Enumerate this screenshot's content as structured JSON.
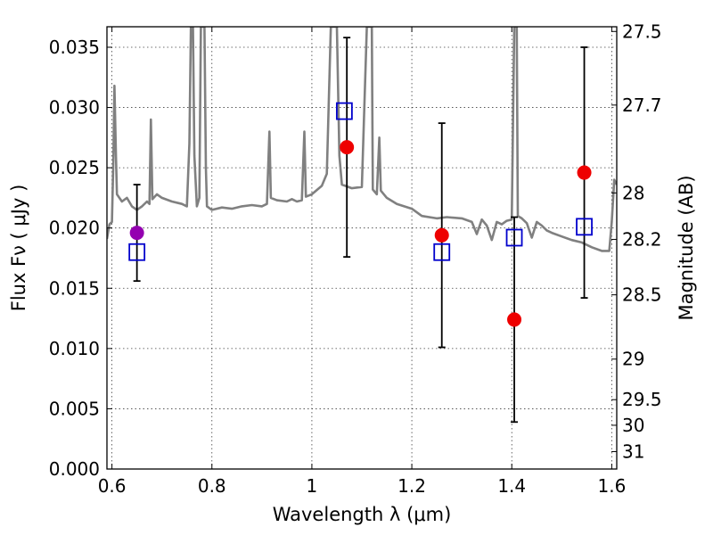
{
  "chart_data": {
    "type": "scatter",
    "xlabel": "Wavelength  λ (μm)",
    "ylabel": "Flux  Fν  ( μJy )",
    "y2label": "Magnitude (AB)",
    "xlim": [
      0.59,
      1.61
    ],
    "ylim": [
      0.0,
      0.0367
    ],
    "grid": true,
    "x_ticks": [
      {
        "value": 0.6,
        "label": "0.6"
      },
      {
        "value": 0.8,
        "label": "0.8"
      },
      {
        "value": 1.0,
        "label": "1"
      },
      {
        "value": 1.2,
        "label": "1.2"
      },
      {
        "value": 1.4,
        "label": "1.4"
      },
      {
        "value": 1.6,
        "label": "1.6"
      }
    ],
    "y_ticks": [
      {
        "value": 0.0,
        "label": "0.000"
      },
      {
        "value": 0.005,
        "label": "0.005"
      },
      {
        "value": 0.01,
        "label": "0.010"
      },
      {
        "value": 0.015,
        "label": "0.015"
      },
      {
        "value": 0.02,
        "label": "0.020"
      },
      {
        "value": 0.025,
        "label": "0.025"
      },
      {
        "value": 0.03,
        "label": "0.030"
      },
      {
        "value": 0.035,
        "label": "0.035"
      }
    ],
    "y2_ticks": [
      {
        "mag": 27.5,
        "label": "27.5"
      },
      {
        "mag": 27.7,
        "label": "27.7"
      },
      {
        "mag": 28.0,
        "label": "28"
      },
      {
        "mag": 28.2,
        "label": "28.2"
      },
      {
        "mag": 28.5,
        "label": "28.5"
      },
      {
        "mag": 29.0,
        "label": "29"
      },
      {
        "mag": 29.5,
        "label": "29.5"
      },
      {
        "mag": 30.0,
        "label": "30"
      },
      {
        "mag": 31.0,
        "label": "31"
      }
    ],
    "observed": [
      {
        "x": 0.65,
        "y": 0.0196,
        "err_low": 0.0156,
        "err_high": 0.0236,
        "color": "#9400b0"
      },
      {
        "x": 1.07,
        "y": 0.0267,
        "err_low": 0.0176,
        "err_high": 0.0358,
        "color": "#ee0000"
      },
      {
        "x": 1.26,
        "y": 0.0194,
        "err_low": 0.0101,
        "err_high": 0.0287,
        "color": "#ee0000"
      },
      {
        "x": 1.405,
        "y": 0.0124,
        "err_low": 0.0039,
        "err_high": 0.0209,
        "color": "#ee0000"
      },
      {
        "x": 1.545,
        "y": 0.0246,
        "err_low": 0.0142,
        "err_high": 0.035,
        "color": "#ee0000"
      }
    ],
    "model_points": [
      {
        "x": 0.65,
        "y": 0.018
      },
      {
        "x": 1.065,
        "y": 0.0297
      },
      {
        "x": 1.26,
        "y": 0.018
      },
      {
        "x": 1.405,
        "y": 0.0192
      },
      {
        "x": 1.545,
        "y": 0.0201
      }
    ],
    "model_spectrum": [
      [
        0.59,
        0.0191
      ],
      [
        0.595,
        0.0203
      ],
      [
        0.6,
        0.0205
      ],
      [
        0.603,
        0.026
      ],
      [
        0.605,
        0.0318
      ],
      [
        0.608,
        0.026
      ],
      [
        0.61,
        0.0228
      ],
      [
        0.62,
        0.0222
      ],
      [
        0.63,
        0.0225
      ],
      [
        0.64,
        0.0218
      ],
      [
        0.65,
        0.0215
      ],
      [
        0.66,
        0.0218
      ],
      [
        0.67,
        0.0222
      ],
      [
        0.675,
        0.022
      ],
      [
        0.678,
        0.029
      ],
      [
        0.681,
        0.0224
      ],
      [
        0.69,
        0.0228
      ],
      [
        0.7,
        0.0225
      ],
      [
        0.72,
        0.0222
      ],
      [
        0.74,
        0.022
      ],
      [
        0.75,
        0.0218
      ],
      [
        0.755,
        0.027
      ],
      [
        0.758,
        0.0367
      ],
      [
        0.762,
        0.0367
      ],
      [
        0.765,
        0.026
      ],
      [
        0.77,
        0.0218
      ],
      [
        0.775,
        0.0225
      ],
      [
        0.778,
        0.0367
      ],
      [
        0.785,
        0.0367
      ],
      [
        0.788,
        0.025
      ],
      [
        0.79,
        0.0218
      ],
      [
        0.8,
        0.0215
      ],
      [
        0.82,
        0.0217
      ],
      [
        0.84,
        0.0216
      ],
      [
        0.86,
        0.0218
      ],
      [
        0.88,
        0.0219
      ],
      [
        0.9,
        0.0218
      ],
      [
        0.91,
        0.022
      ],
      [
        0.915,
        0.028
      ],
      [
        0.918,
        0.0225
      ],
      [
        0.93,
        0.0223
      ],
      [
        0.95,
        0.0222
      ],
      [
        0.96,
        0.0224
      ],
      [
        0.97,
        0.0222
      ],
      [
        0.98,
        0.0223
      ],
      [
        0.985,
        0.028
      ],
      [
        0.988,
        0.0226
      ],
      [
        1.0,
        0.0228
      ],
      [
        1.02,
        0.0235
      ],
      [
        1.03,
        0.0245
      ],
      [
        1.038,
        0.0367
      ],
      [
        1.05,
        0.0367
      ],
      [
        1.055,
        0.026
      ],
      [
        1.06,
        0.0236
      ],
      [
        1.08,
        0.0233
      ],
      [
        1.1,
        0.0234
      ],
      [
        1.11,
        0.0367
      ],
      [
        1.12,
        0.0367
      ],
      [
        1.122,
        0.0232
      ],
      [
        1.13,
        0.0228
      ],
      [
        1.135,
        0.0275
      ],
      [
        1.138,
        0.0231
      ],
      [
        1.15,
        0.0225
      ],
      [
        1.17,
        0.022
      ],
      [
        1.2,
        0.0216
      ],
      [
        1.22,
        0.021
      ],
      [
        1.25,
        0.0208
      ],
      [
        1.27,
        0.0209
      ],
      [
        1.3,
        0.0208
      ],
      [
        1.32,
        0.0205
      ],
      [
        1.33,
        0.0195
      ],
      [
        1.34,
        0.0207
      ],
      [
        1.35,
        0.0202
      ],
      [
        1.36,
        0.019
      ],
      [
        1.37,
        0.0205
      ],
      [
        1.38,
        0.0203
      ],
      [
        1.39,
        0.0206
      ],
      [
        1.4,
        0.0207
      ],
      [
        1.405,
        0.0367
      ],
      [
        1.41,
        0.0367
      ],
      [
        1.412,
        0.021
      ],
      [
        1.42,
        0.0208
      ],
      [
        1.43,
        0.0204
      ],
      [
        1.44,
        0.0192
      ],
      [
        1.45,
        0.0205
      ],
      [
        1.46,
        0.0202
      ],
      [
        1.47,
        0.0198
      ],
      [
        1.48,
        0.0196
      ],
      [
        1.5,
        0.0193
      ],
      [
        1.52,
        0.019
      ],
      [
        1.54,
        0.0188
      ],
      [
        1.56,
        0.0184
      ],
      [
        1.58,
        0.0181
      ],
      [
        1.595,
        0.0181
      ],
      [
        1.6,
        0.0205
      ],
      [
        1.605,
        0.024
      ],
      [
        1.61,
        0.0236
      ]
    ],
    "colors": {
      "spectrum": "#808080",
      "model_marker": "#0000cc",
      "error_bar": "#000000"
    }
  }
}
